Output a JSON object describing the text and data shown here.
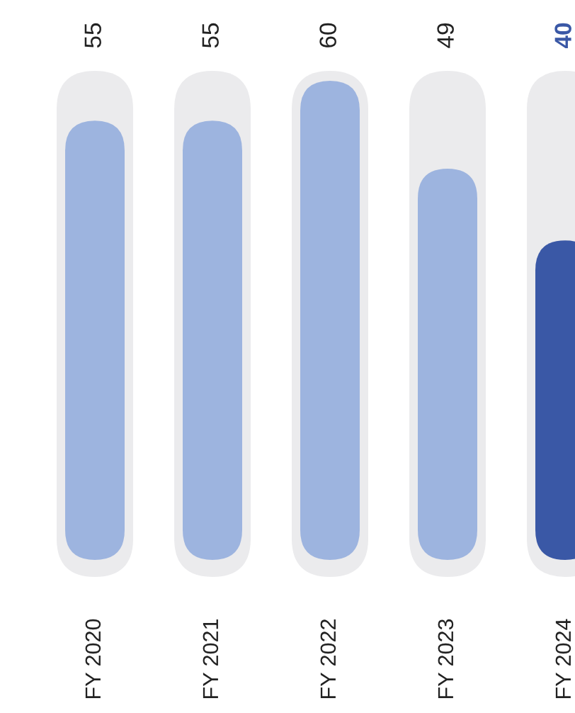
{
  "chart_data": {
    "type": "bar",
    "categories": [
      "FY 2020",
      "FY 2021",
      "FY 2022",
      "FY 2023",
      "FY 2024"
    ],
    "values": [
      55,
      55,
      60,
      49,
      40
    ],
    "colors": [
      "#9db4df",
      "#9db4df",
      "#9db4df",
      "#9db4df",
      "#3a58a6"
    ],
    "data_labels": true,
    "tick_labels": "x"
  }
}
